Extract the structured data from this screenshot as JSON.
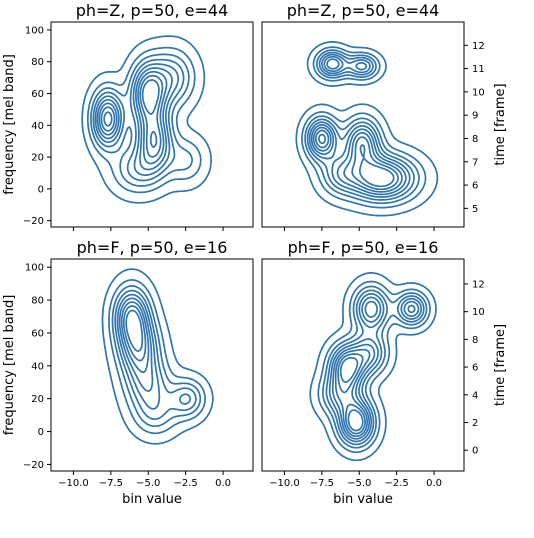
{
  "chart_data": [
    {
      "type": "contour",
      "title": "ph=Z, p=50, e=44",
      "xlabel": "",
      "ylabel": "frequency [mel band]",
      "y_side": "left",
      "xlim": [
        -11.5,
        2.0
      ],
      "ylim": [
        -24,
        105
      ],
      "xticks": [],
      "yticks": [
        -20,
        0,
        20,
        40,
        60,
        80,
        100
      ],
      "x_tick_positions": [
        -10,
        -7.5,
        -5,
        -2.5,
        0
      ],
      "levels": 9,
      "color": "#2f75b0",
      "components": [
        {
          "x": -7.7,
          "y": 44,
          "sx": 0.7,
          "sy": 12,
          "w": 1.0
        },
        {
          "x": -5.0,
          "y": 60,
          "sx": 0.8,
          "sy": 13,
          "w": 0.95
        },
        {
          "x": -4.6,
          "y": 30,
          "sx": 0.8,
          "sy": 13,
          "w": 0.85
        },
        {
          "x": -3.4,
          "y": 70,
          "sx": 1.0,
          "sy": 12,
          "w": 0.5
        },
        {
          "x": -5.8,
          "y": 12,
          "sx": 1.1,
          "sy": 10,
          "w": 0.4
        },
        {
          "x": -2.5,
          "y": 18,
          "sx": 0.9,
          "sy": 10,
          "w": 0.3
        }
      ]
    },
    {
      "type": "contour",
      "title": "ph=Z, p=50, e=44",
      "xlabel": "",
      "ylabel": "time [frame]",
      "y_side": "right",
      "xlim": [
        -11.5,
        2.0
      ],
      "ylim": [
        4.2,
        13.0
      ],
      "xticks": [],
      "yticks": [
        5,
        6,
        7,
        8,
        9,
        10,
        11,
        12
      ],
      "x_tick_positions": [
        -10,
        -7.5,
        -5,
        -2.5,
        0
      ],
      "levels": 9,
      "color": "#2f75b0",
      "components": [
        {
          "x": -6.8,
          "y": 11.2,
          "sx": 0.7,
          "sy": 0.4,
          "w": 0.75
        },
        {
          "x": -4.8,
          "y": 11.1,
          "sx": 0.7,
          "sy": 0.35,
          "w": 0.6
        },
        {
          "x": -7.5,
          "y": 8.0,
          "sx": 0.7,
          "sy": 0.6,
          "w": 0.9
        },
        {
          "x": -4.8,
          "y": 7.8,
          "sx": 0.8,
          "sy": 0.7,
          "w": 0.8
        },
        {
          "x": -3.5,
          "y": 6.3,
          "sx": 1.5,
          "sy": 0.65,
          "w": 1.0
        },
        {
          "x": -6.3,
          "y": 6.5,
          "sx": 0.9,
          "sy": 0.6,
          "w": 0.4
        }
      ]
    },
    {
      "type": "contour",
      "title": "ph=F, p=50, e=16",
      "xlabel": "bin value",
      "ylabel": "frequency [mel band]",
      "y_side": "left",
      "xlim": [
        -11.5,
        2.0
      ],
      "ylim": [
        -24,
        105
      ],
      "xticks": [
        -10.0,
        -7.5,
        -5.0,
        -2.5,
        0.0
      ],
      "xtick_labels": [
        "−10.0",
        "−7.5",
        "−5.0",
        "−2.5",
        "0.0"
      ],
      "yticks": [
        -20,
        0,
        20,
        40,
        60,
        80,
        100
      ],
      "levels": 9,
      "color": "#2f75b0",
      "components": [
        {
          "x": -6.1,
          "y": 70,
          "sx": 0.8,
          "sy": 12,
          "w": 1.0
        },
        {
          "x": -5.6,
          "y": 50,
          "sx": 0.9,
          "sy": 12,
          "w": 0.8
        },
        {
          "x": -5.0,
          "y": 28,
          "sx": 1.0,
          "sy": 11,
          "w": 0.55
        },
        {
          "x": -2.4,
          "y": 20,
          "sx": 0.8,
          "sy": 8,
          "w": 0.55
        },
        {
          "x": -4.5,
          "y": 10,
          "sx": 1.0,
          "sy": 9,
          "w": 0.35
        }
      ]
    },
    {
      "type": "contour",
      "title": "ph=F, p=50, e=16",
      "xlabel": "bin value",
      "ylabel": "time [frame]",
      "y_side": "right",
      "xlim": [
        -11.5,
        2.0
      ],
      "ylim": [
        -1.5,
        13.8
      ],
      "xticks": [
        -10.0,
        -7.5,
        -5.0,
        -2.5,
        0.0
      ],
      "xtick_labels": [
        "−10.0",
        "−7.5",
        "−5.0",
        "−2.5",
        "0.0"
      ],
      "yticks": [
        0,
        2,
        4,
        6,
        8,
        10,
        12
      ],
      "levels": 9,
      "color": "#2f75b0",
      "components": [
        {
          "x": -5.2,
          "y": 2.0,
          "sx": 0.8,
          "sy": 1.1,
          "w": 1.0
        },
        {
          "x": -5.8,
          "y": 6.0,
          "sx": 0.8,
          "sy": 1.1,
          "w": 0.9
        },
        {
          "x": -4.2,
          "y": 10.2,
          "sx": 0.8,
          "sy": 1.1,
          "w": 0.75
        },
        {
          "x": -1.5,
          "y": 10.2,
          "sx": 0.7,
          "sy": 0.8,
          "w": 0.7
        },
        {
          "x": -4.3,
          "y": 7.0,
          "sx": 0.8,
          "sy": 1.0,
          "w": 0.55
        },
        {
          "x": -6.3,
          "y": 4.0,
          "sx": 0.9,
          "sy": 1.0,
          "w": 0.5
        }
      ]
    }
  ]
}
